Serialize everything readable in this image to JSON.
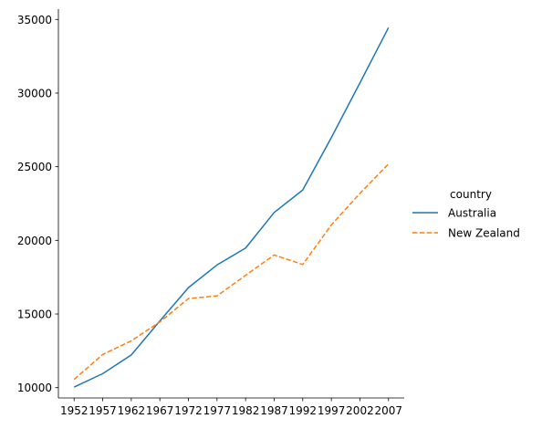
{
  "chart_data": {
    "type": "line",
    "title": "",
    "xlabel": "",
    "ylabel": "",
    "x": [
      1952,
      1957,
      1962,
      1967,
      1972,
      1977,
      1982,
      1987,
      1992,
      1997,
      2002,
      2007
    ],
    "xlim": [
      1949.25,
      2009.75
    ],
    "ylim": [
      9300,
      35700
    ],
    "yticks": [
      10000,
      15000,
      20000,
      25000,
      30000,
      35000
    ],
    "series": [
      {
        "name": "Australia",
        "color": "#1f77b4",
        "dash": "solid",
        "values": [
          10040,
          10950,
          12220,
          14530,
          16790,
          18330,
          19480,
          21890,
          23420,
          26980,
          30690,
          34440
        ]
      },
      {
        "name": "New Zealand",
        "color": "#ff7f0e",
        "dash": "dashed",
        "values": [
          10560,
          12250,
          13180,
          14460,
          16050,
          16230,
          17630,
          19010,
          18360,
          21050,
          23190,
          25190
        ]
      }
    ],
    "legend": {
      "title": "country",
      "placement": "right"
    },
    "grid": false
  }
}
